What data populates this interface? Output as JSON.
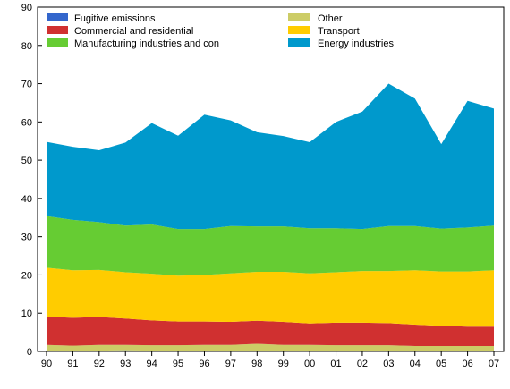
{
  "chart_data": {
    "type": "area",
    "stacked": true,
    "categories": [
      "90",
      "91",
      "92",
      "93",
      "94",
      "95",
      "96",
      "97",
      "98",
      "99",
      "00",
      "01",
      "02",
      "03",
      "04",
      "05",
      "06",
      "07"
    ],
    "ylim": [
      0,
      90
    ],
    "yticks": [
      0,
      10,
      20,
      30,
      40,
      50,
      60,
      70,
      80,
      90
    ],
    "grid": false,
    "legend_position": "top",
    "series": [
      {
        "name": "Fugitive emissions",
        "color": "#3366cc",
        "values": [
          0.2,
          0.2,
          0.2,
          0.3,
          0.2,
          0.2,
          0.2,
          0.2,
          0.2,
          0.2,
          0.2,
          0.2,
          0.2,
          0.2,
          0.2,
          0.2,
          0.2,
          0.2
        ]
      },
      {
        "name": "Other",
        "color": "#cccc66",
        "values": [
          1.5,
          1.3,
          1.5,
          1.4,
          1.4,
          1.4,
          1.5,
          1.5,
          1.8,
          1.5,
          1.5,
          1.4,
          1.4,
          1.4,
          1.2,
          1.2,
          1.2,
          1.2
        ]
      },
      {
        "name": "Commercial and residential",
        "color": "#d03030",
        "values": [
          7.4,
          7.3,
          7.3,
          6.9,
          6.5,
          6.2,
          6.1,
          6.0,
          6.0,
          6.0,
          5.6,
          5.9,
          5.9,
          5.8,
          5.6,
          5.3,
          5.1,
          5.1
        ]
      },
      {
        "name": "Transport",
        "color": "#ffcc00",
        "values": [
          12.8,
          12.4,
          12.3,
          12.1,
          12.2,
          12.0,
          12.2,
          12.7,
          12.8,
          13.1,
          13.1,
          13.2,
          13.5,
          13.6,
          14.2,
          14.2,
          14.4,
          14.7
        ]
      },
      {
        "name": "Manufacturing industries and con",
        "color": "#66cc33",
        "values": [
          13.5,
          13.2,
          12.5,
          12.2,
          12.9,
          12.2,
          12.0,
          12.4,
          11.9,
          11.9,
          11.8,
          11.5,
          11.0,
          11.8,
          11.6,
          11.2,
          11.5,
          11.7
        ]
      },
      {
        "name": "Energy industries",
        "color": "#0099cc",
        "values": [
          19.4,
          19.1,
          18.8,
          21.7,
          26.5,
          24.4,
          29.9,
          27.6,
          24.6,
          23.6,
          22.5,
          27.8,
          30.7,
          37.2,
          33.3,
          22.1,
          33.1,
          30.6
        ]
      }
    ]
  },
  "legend": {
    "items": [
      {
        "label": "Fugitive emissions",
        "color": "#3366cc"
      },
      {
        "label": "Commercial and residential",
        "color": "#d03030"
      },
      {
        "label": "Manufacturing industries and con",
        "color": "#66cc33"
      },
      {
        "label": "Other",
        "color": "#cccc66"
      },
      {
        "label": "Transport",
        "color": "#ffcc00"
      },
      {
        "label": "Energy industries",
        "color": "#0099cc"
      }
    ]
  }
}
